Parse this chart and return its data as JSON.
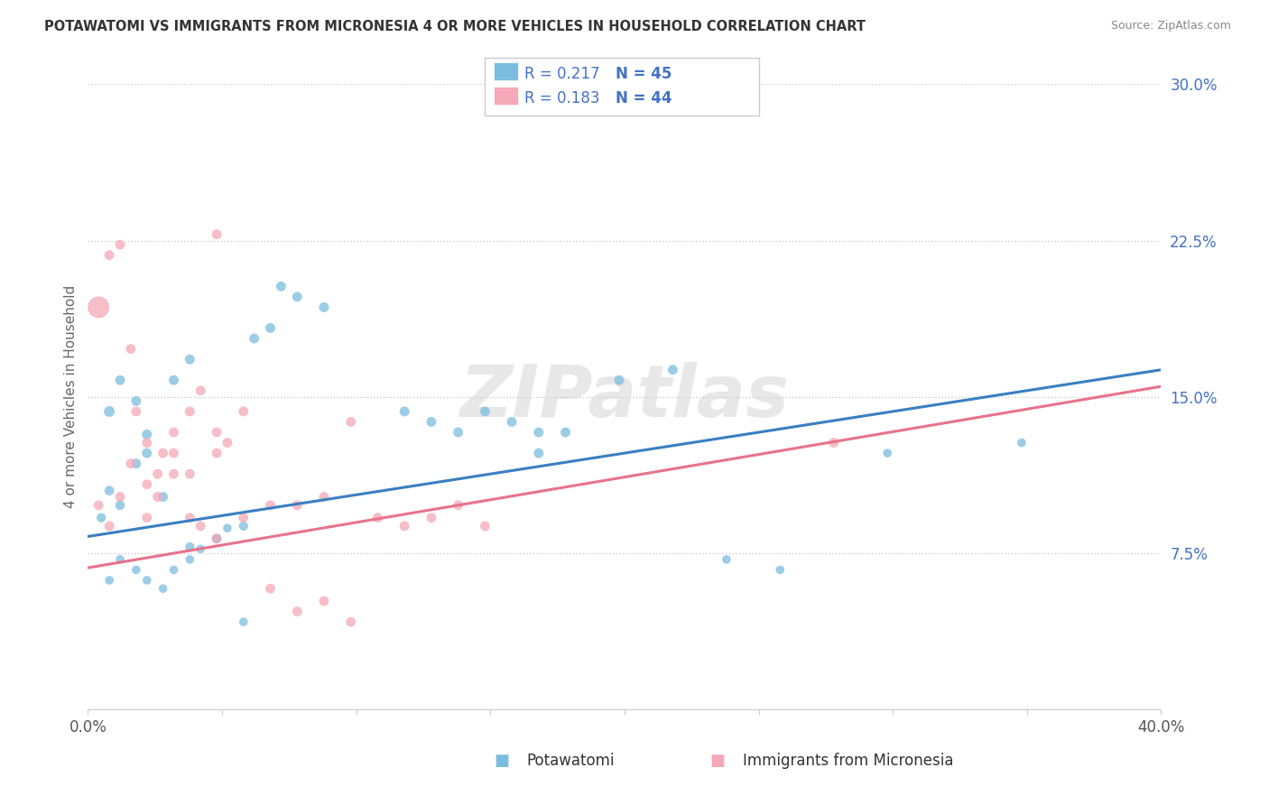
{
  "title": "POTAWATOMI VS IMMIGRANTS FROM MICRONESIA 4 OR MORE VEHICLES IN HOUSEHOLD CORRELATION CHART",
  "source": "Source: ZipAtlas.com",
  "ylabel": "4 or more Vehicles in Household",
  "xlim": [
    0.0,
    0.4
  ],
  "ylim": [
    0.0,
    0.3
  ],
  "xticks": [
    0.0,
    0.05,
    0.1,
    0.15,
    0.2,
    0.25,
    0.3,
    0.35,
    0.4
  ],
  "xtick_labels": [
    "0.0%",
    "",
    "",
    "",
    "",
    "",
    "",
    "",
    "40.0%"
  ],
  "yticks": [
    0.0,
    0.075,
    0.15,
    0.225,
    0.3
  ],
  "ytick_labels": [
    "",
    "7.5%",
    "15.0%",
    "22.5%",
    "30.0%"
  ],
  "blue_color": "#7bbde0",
  "pink_color": "#f4a8b8",
  "blue_line_color": "#3a7fc1",
  "pink_line_color": "#e8738a",
  "legend_R1": "0.217",
  "legend_N1": "45",
  "legend_R2": "0.183",
  "legend_N2": "44",
  "legend_label1": "Potawatomi",
  "legend_label2": "Immigrants from Micronesia",
  "watermark": "ZIPatlas",
  "text_blue": "#4472c4",
  "blue_scatter_x": [
    0.008,
    0.005,
    0.012,
    0.018,
    0.022,
    0.008,
    0.028,
    0.038,
    0.048,
    0.058,
    0.022,
    0.018,
    0.012,
    0.032,
    0.038,
    0.062,
    0.068,
    0.078,
    0.072,
    0.088,
    0.008,
    0.012,
    0.018,
    0.022,
    0.028,
    0.032,
    0.038,
    0.042,
    0.048,
    0.052,
    0.118,
    0.128,
    0.138,
    0.148,
    0.158,
    0.168,
    0.198,
    0.218,
    0.238,
    0.258,
    0.298,
    0.348,
    0.168,
    0.058,
    0.178
  ],
  "blue_scatter_y": [
    0.105,
    0.092,
    0.098,
    0.118,
    0.123,
    0.143,
    0.102,
    0.078,
    0.082,
    0.088,
    0.132,
    0.148,
    0.158,
    0.158,
    0.168,
    0.178,
    0.183,
    0.198,
    0.203,
    0.193,
    0.062,
    0.072,
    0.067,
    0.062,
    0.058,
    0.067,
    0.072,
    0.077,
    0.082,
    0.087,
    0.143,
    0.138,
    0.133,
    0.143,
    0.138,
    0.133,
    0.158,
    0.163,
    0.072,
    0.067,
    0.123,
    0.128,
    0.123,
    0.042,
    0.133
  ],
  "blue_scatter_size": [
    60,
    55,
    58,
    62,
    62,
    75,
    62,
    55,
    58,
    55,
    62,
    62,
    62,
    62,
    62,
    62,
    62,
    62,
    62,
    62,
    48,
    48,
    48,
    48,
    48,
    48,
    48,
    48,
    48,
    48,
    62,
    62,
    62,
    62,
    62,
    62,
    62,
    62,
    48,
    48,
    48,
    48,
    62,
    48,
    62
  ],
  "pink_scatter_x": [
    0.004,
    0.008,
    0.012,
    0.016,
    0.022,
    0.026,
    0.032,
    0.038,
    0.042,
    0.048,
    0.004,
    0.008,
    0.012,
    0.016,
    0.022,
    0.026,
    0.032,
    0.038,
    0.048,
    0.058,
    0.068,
    0.078,
    0.088,
    0.098,
    0.108,
    0.118,
    0.128,
    0.138,
    0.148,
    0.018,
    0.022,
    0.028,
    0.032,
    0.038,
    0.042,
    0.048,
    0.052,
    0.058,
    0.068,
    0.078,
    0.088,
    0.098,
    0.278,
    0.048
  ],
  "pink_scatter_y": [
    0.193,
    0.218,
    0.223,
    0.173,
    0.092,
    0.102,
    0.113,
    0.092,
    0.088,
    0.082,
    0.098,
    0.088,
    0.102,
    0.118,
    0.108,
    0.113,
    0.123,
    0.113,
    0.123,
    0.092,
    0.098,
    0.098,
    0.102,
    0.138,
    0.092,
    0.088,
    0.092,
    0.098,
    0.088,
    0.143,
    0.128,
    0.123,
    0.133,
    0.143,
    0.153,
    0.133,
    0.128,
    0.143,
    0.058,
    0.047,
    0.052,
    0.042,
    0.128,
    0.228
  ],
  "pink_scatter_size": [
    300,
    62,
    62,
    62,
    62,
    62,
    62,
    62,
    62,
    62,
    62,
    62,
    62,
    62,
    62,
    62,
    62,
    62,
    62,
    62,
    62,
    62,
    62,
    62,
    62,
    62,
    62,
    62,
    62,
    62,
    62,
    62,
    62,
    62,
    62,
    62,
    62,
    62,
    62,
    62,
    62,
    62,
    62,
    62
  ],
  "blue_line_x": [
    0.0,
    0.4
  ],
  "blue_line_y": [
    0.083,
    0.163
  ],
  "pink_line_x": [
    0.0,
    0.4
  ],
  "pink_line_y": [
    0.068,
    0.155
  ]
}
